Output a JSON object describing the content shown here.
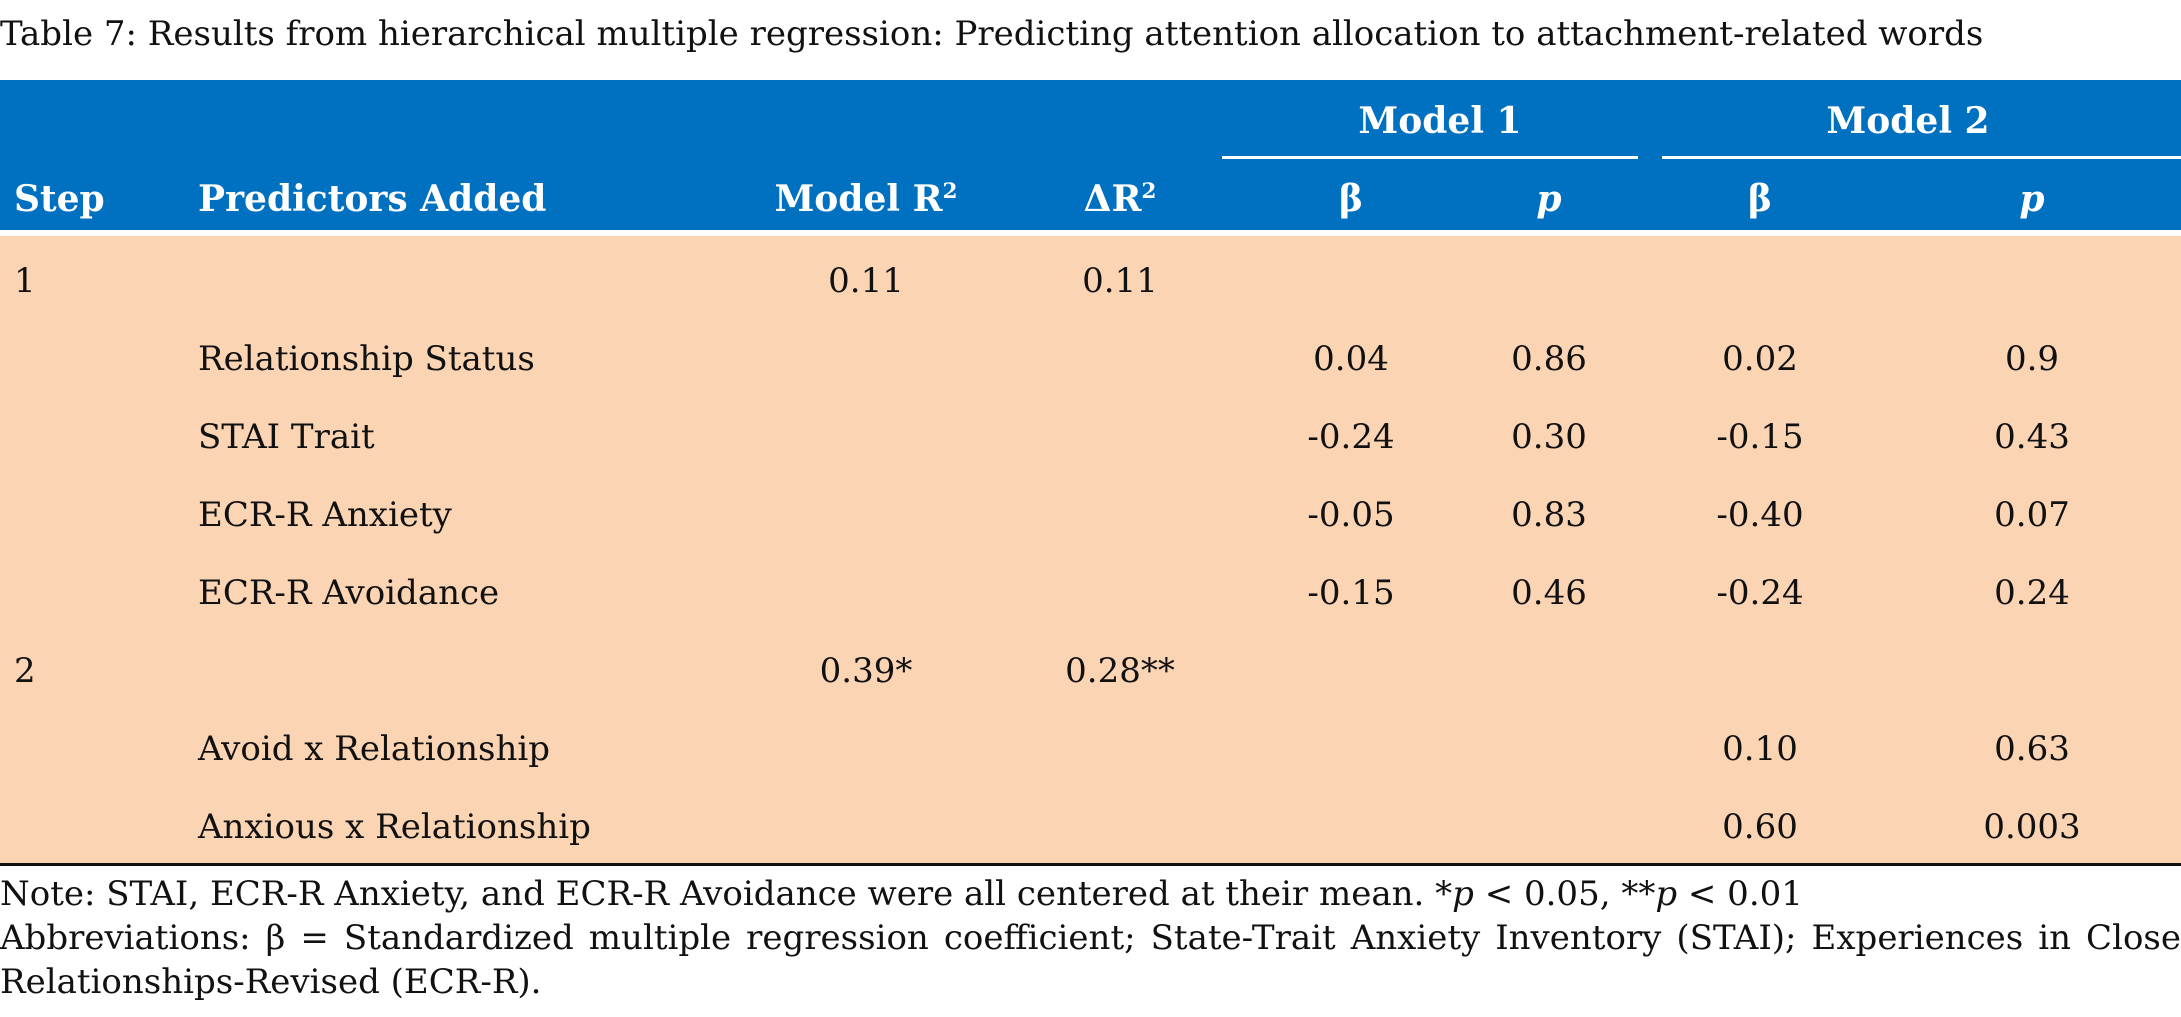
{
  "caption": "Table 7: Results from hierarchical multiple regression: Predicting attention allocation to attachment-related words",
  "header": {
    "model1_label": "Model 1",
    "model2_label": "Model 2",
    "columns": {
      "step": "Step",
      "predictors": "Predictors Added",
      "model_r2": "Model R",
      "model_r2_sup": "2",
      "delta_r2": "ΔR",
      "delta_r2_sup": "2",
      "m1_beta": "β",
      "m1_p": "p",
      "m2_beta": "β",
      "m2_p": "p"
    }
  },
  "rows": [
    {
      "step": "1",
      "predictor": "",
      "model_r2": "0.11",
      "delta_r2": "0.11",
      "m1_beta": "",
      "m1_p": "",
      "m2_beta": "",
      "m2_p": ""
    },
    {
      "step": "",
      "predictor": "Relationship Status",
      "model_r2": "",
      "delta_r2": "",
      "m1_beta": "0.04",
      "m1_p": "0.86",
      "m2_beta": "0.02",
      "m2_p": "0.9"
    },
    {
      "step": "",
      "predictor": "STAI Trait",
      "model_r2": "",
      "delta_r2": "",
      "m1_beta": "-0.24",
      "m1_p": "0.30",
      "m2_beta": "-0.15",
      "m2_p": "0.43"
    },
    {
      "step": "",
      "predictor": "ECR-R Anxiety",
      "model_r2": "",
      "delta_r2": "",
      "m1_beta": "-0.05",
      "m1_p": "0.83",
      "m2_beta": "-0.40",
      "m2_p": "0.07"
    },
    {
      "step": "",
      "predictor": "ECR-R Avoidance",
      "model_r2": "",
      "delta_r2": "",
      "m1_beta": "-0.15",
      "m1_p": "0.46",
      "m2_beta": "-0.24",
      "m2_p": "0.24"
    },
    {
      "step": "2",
      "predictor": "",
      "model_r2": "0.39*",
      "delta_r2": "0.28**",
      "m1_beta": "",
      "m1_p": "",
      "m2_beta": "",
      "m2_p": ""
    },
    {
      "step": "",
      "predictor": "Avoid x Relationship",
      "model_r2": "",
      "delta_r2": "",
      "m1_beta": "",
      "m1_p": "",
      "m2_beta": "0.10",
      "m2_p": "0.63"
    },
    {
      "step": "",
      "predictor": "Anxious x Relationship",
      "model_r2": "",
      "delta_r2": "",
      "m1_beta": "",
      "m1_p": "",
      "m2_beta": "0.60",
      "m2_p": "0.003"
    }
  ],
  "notes": {
    "line1_prefix": "Note: STAI, ECR-R Anxiety, and ECR-R Avoidance were all centered at their mean. *",
    "line1_p1": "p",
    "line1_mid": " < 0.05, **",
    "line1_p2": "p",
    "line1_suffix": " < 0.01",
    "abbreviations_line1": "Abbreviations: β = Standardized multiple regression coefficient; State-Trait Anxiety Inventory (STAI); Experiences in Close",
    "abbreviations_line2": "Relationships-Revised (ECR-R)."
  }
}
